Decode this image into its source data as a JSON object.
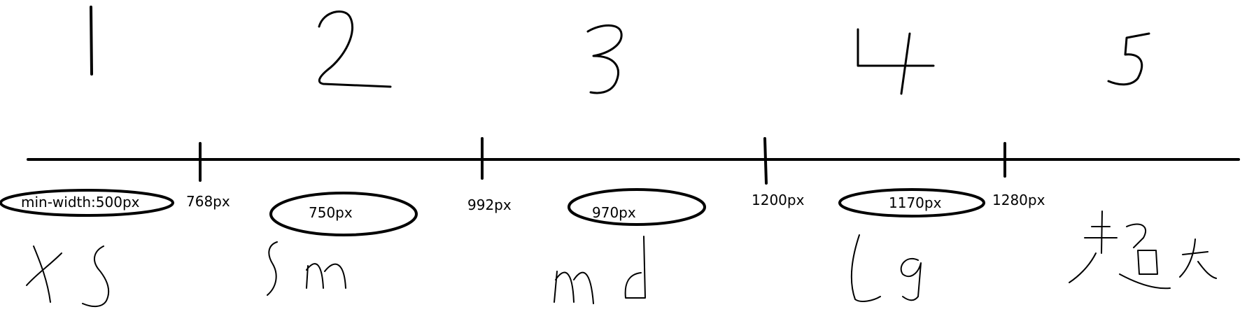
{
  "breakpoints": [
    "768px",
    "992px",
    "1200px",
    "1280px"
  ],
  "containers": [
    "min-width:500px",
    "750px",
    "970px",
    "1170px"
  ],
  "zone_numbers": [
    "1",
    "2",
    "3",
    "4",
    "5"
  ],
  "zone_labels": [
    "xs",
    "sm",
    "md",
    "lg",
    "超大"
  ]
}
